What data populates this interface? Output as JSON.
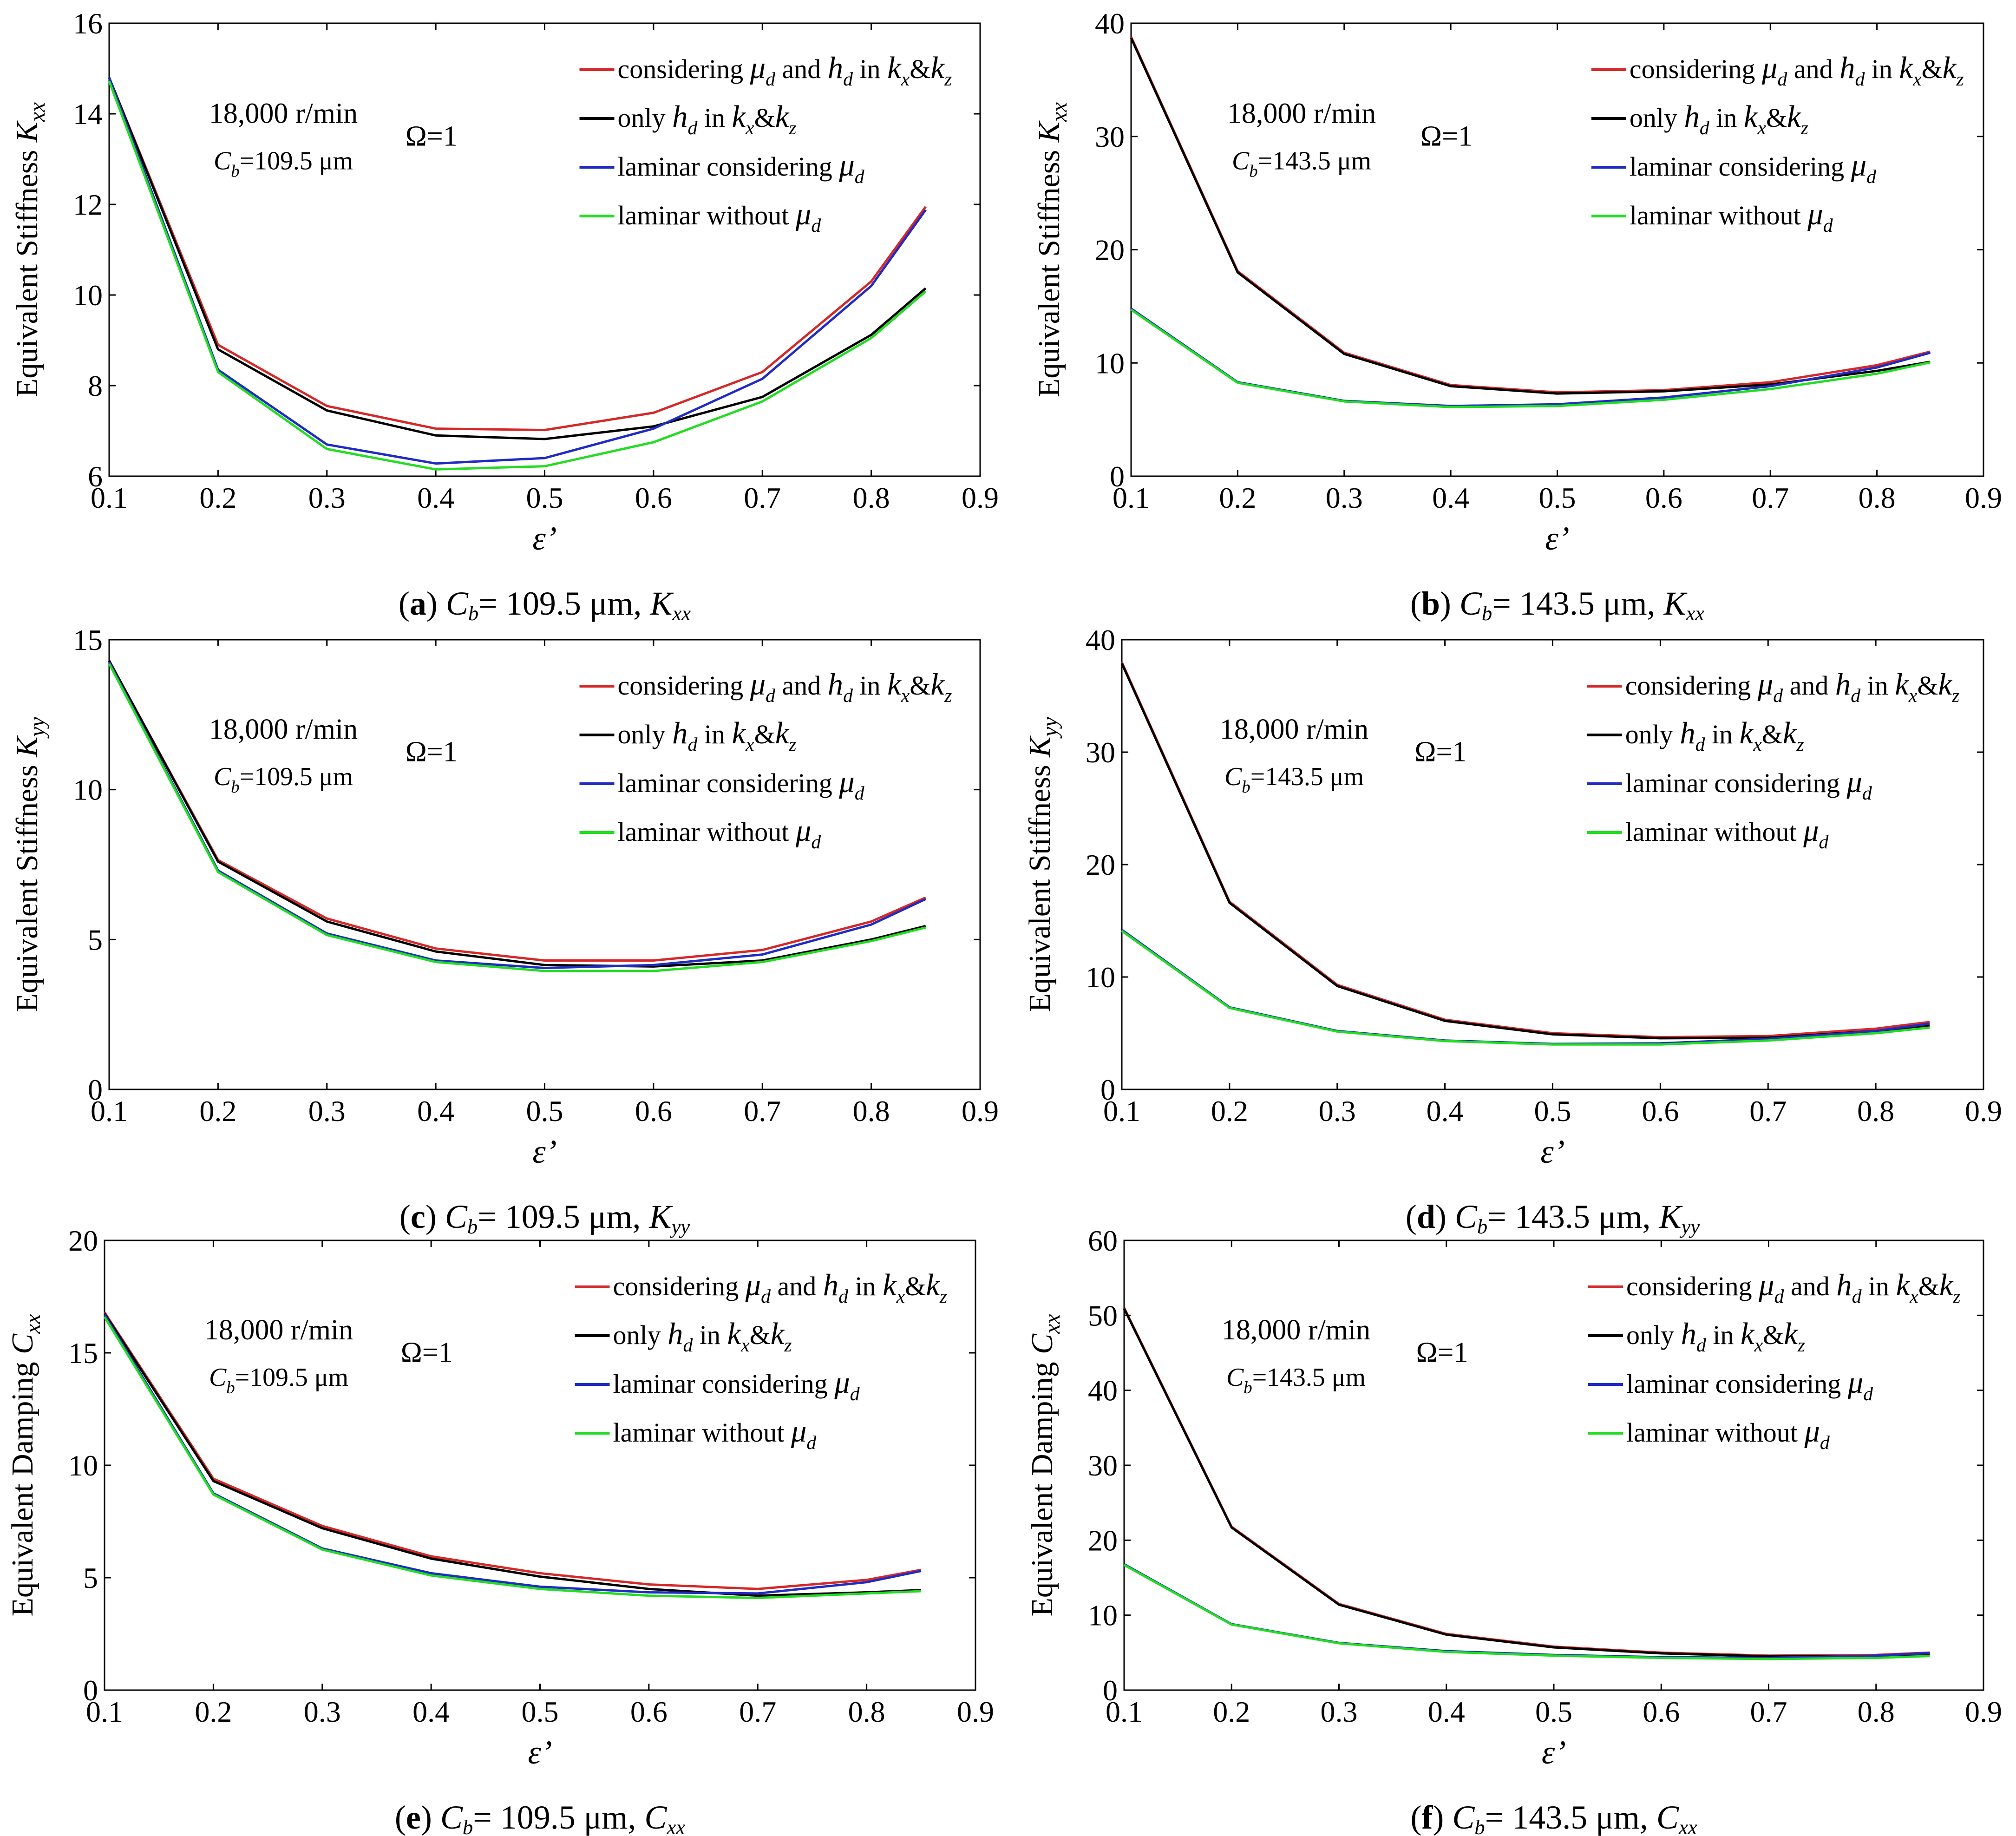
{
  "figure": {
    "subtitle_templates": "(letter) Cb = value, Kxx"
  },
  "legend_labels": [
    {
      "key": "s1",
      "parts": [
        "considering ",
        "μ",
        "d",
        " and ",
        "h",
        "d",
        " in ",
        "k",
        "x",
        "&",
        "k",
        "z"
      ]
    },
    {
      "key": "s2",
      "parts": [
        "only ",
        "h",
        "d",
        " in ",
        "k",
        "x",
        "&",
        "k",
        "z"
      ]
    },
    {
      "key": "s3",
      "parts": [
        "laminar considering ",
        "μ",
        "d"
      ]
    },
    {
      "key": "s4",
      "parts": [
        "laminar without ",
        "μ",
        "d"
      ]
    }
  ],
  "colors": {
    "s1": "#d62828",
    "s2": "#000000",
    "s3": "#1f2bc4",
    "s4": "#22dd22"
  },
  "chart_data": [
    {
      "id": "a",
      "type": "line",
      "subtitle": {
        "letter": "a",
        "cb_value": "= 109.5 μm,",
        "quantity": "K",
        "quantity_sub": "xx"
      },
      "ylabel": {
        "prefix": "Equivalent Stiffness ",
        "symbol": "K",
        "sub": "xx"
      },
      "xlabel": "ε’",
      "annotations": {
        "speed": "18,000 r/min",
        "cb": "C",
        "cb_sub": "b",
        "cb_value": "=109.5 μm",
        "omega": "Ω=1"
      },
      "xlim": [
        0.1,
        0.9
      ],
      "ylim": [
        6,
        16
      ],
      "xticks": [
        "0.1",
        "0.2",
        "0.3",
        "0.4",
        "0.5",
        "0.6",
        "0.7",
        "0.8",
        "0.9"
      ],
      "yticks": [
        "6",
        "8",
        "10",
        "12",
        "14",
        "16"
      ],
      "x": [
        0.1,
        0.2,
        0.3,
        0.4,
        0.5,
        0.6,
        0.7,
        0.8,
        0.85
      ],
      "series": [
        {
          "key": "s1",
          "values": [
            14.8,
            8.9,
            7.55,
            7.05,
            7.02,
            7.4,
            8.3,
            10.3,
            11.95
          ]
        },
        {
          "key": "s2",
          "values": [
            14.8,
            8.8,
            7.45,
            6.9,
            6.82,
            7.1,
            7.75,
            9.12,
            10.15
          ]
        },
        {
          "key": "s3",
          "values": [
            14.8,
            8.35,
            6.7,
            6.28,
            6.4,
            7.05,
            8.15,
            10.2,
            11.88
          ]
        },
        {
          "key": "s4",
          "values": [
            14.72,
            8.3,
            6.6,
            6.15,
            6.22,
            6.75,
            7.65,
            9.05,
            10.08
          ]
        }
      ]
    },
    {
      "id": "b",
      "type": "line",
      "subtitle": {
        "letter": "b",
        "cb_value": "= 143.5 μm,",
        "quantity": "K",
        "quantity_sub": "xx"
      },
      "ylabel": {
        "prefix": "Equivalent Stiffness ",
        "symbol": "K",
        "sub": "xx"
      },
      "xlabel": "ε’",
      "annotations": {
        "speed": "18,000 r/min",
        "cb": "C",
        "cb_sub": "b",
        "cb_value": "=143.5 μm",
        "omega": "Ω=1"
      },
      "xlim": [
        0.1,
        0.9
      ],
      "ylim": [
        0,
        40
      ],
      "xticks": [
        "0.1",
        "0.2",
        "0.3",
        "0.4",
        "0.5",
        "0.6",
        "0.7",
        "0.8",
        "0.9"
      ],
      "yticks": [
        "0",
        "10",
        "20",
        "30",
        "40"
      ],
      "x": [
        0.1,
        0.2,
        0.3,
        0.4,
        0.5,
        0.6,
        0.7,
        0.8,
        0.85
      ],
      "series": [
        {
          "key": "s1",
          "values": [
            38.8,
            18.1,
            10.9,
            8.05,
            7.4,
            7.6,
            8.3,
            9.8,
            11.0
          ]
        },
        {
          "key": "s2",
          "values": [
            38.7,
            18.0,
            10.8,
            7.95,
            7.3,
            7.5,
            8.1,
            9.3,
            10.1
          ]
        },
        {
          "key": "s3",
          "values": [
            14.8,
            8.3,
            6.65,
            6.2,
            6.35,
            6.95,
            7.95,
            9.6,
            10.9
          ]
        },
        {
          "key": "s4",
          "values": [
            14.7,
            8.25,
            6.6,
            6.1,
            6.2,
            6.75,
            7.7,
            9.05,
            10.05
          ]
        }
      ]
    },
    {
      "id": "c",
      "type": "line",
      "subtitle": {
        "letter": "c",
        "cb_value": "= 109.5 μm,",
        "quantity": "K",
        "quantity_sub": "yy"
      },
      "ylabel": {
        "prefix": "Equivalent Stiffness ",
        "symbol": "K",
        "sub": "yy"
      },
      "xlabel": "ε’",
      "annotations": {
        "speed": "18,000 r/min",
        "cb": "C",
        "cb_sub": "b",
        "cb_value": "=109.5 μm",
        "omega": "Ω=1"
      },
      "xlim": [
        0.1,
        0.9
      ],
      "ylim": [
        0,
        15
      ],
      "xticks": [
        "0.1",
        "0.2",
        "0.3",
        "0.4",
        "0.5",
        "0.6",
        "0.7",
        "0.8",
        "0.9"
      ],
      "yticks": [
        "0",
        "5",
        "10",
        "15"
      ],
      "x": [
        0.1,
        0.2,
        0.3,
        0.4,
        0.5,
        0.6,
        0.7,
        0.8,
        0.85
      ],
      "series": [
        {
          "key": "s1",
          "values": [
            14.3,
            7.65,
            5.7,
            4.7,
            4.3,
            4.3,
            4.65,
            5.6,
            6.4
          ]
        },
        {
          "key": "s2",
          "values": [
            14.3,
            7.6,
            5.6,
            4.6,
            4.15,
            4.1,
            4.3,
            5.0,
            5.45
          ]
        },
        {
          "key": "s3",
          "values": [
            14.25,
            7.3,
            5.2,
            4.3,
            4.05,
            4.15,
            4.5,
            5.5,
            6.35
          ]
        },
        {
          "key": "s4",
          "values": [
            14.2,
            7.25,
            5.15,
            4.25,
            3.95,
            3.95,
            4.25,
            4.95,
            5.4
          ]
        }
      ]
    },
    {
      "id": "d",
      "type": "line",
      "subtitle": {
        "letter": "d",
        "cb_value": "= 143.5 μm,",
        "quantity": "K",
        "quantity_sub": "yy"
      },
      "ylabel": {
        "prefix": "Equivalent Stiffness ",
        "symbol": "K",
        "sub": "yy"
      },
      "xlabel": "ε’",
      "annotations": {
        "speed": "18,000 r/min",
        "cb": "C",
        "cb_sub": "b",
        "cb_value": "=143.5 μm",
        "omega": "Ω=1"
      },
      "xlim": [
        0.1,
        0.9
      ],
      "ylim": [
        0,
        40
      ],
      "xticks": [
        "0.1",
        "0.2",
        "0.3",
        "0.4",
        "0.5",
        "0.6",
        "0.7",
        "0.8",
        "0.9"
      ],
      "yticks": [
        "0",
        "10",
        "20",
        "30",
        "40"
      ],
      "x": [
        0.1,
        0.2,
        0.3,
        0.4,
        0.5,
        0.6,
        0.7,
        0.8,
        0.85
      ],
      "series": [
        {
          "key": "s1",
          "values": [
            38.0,
            16.7,
            9.3,
            6.2,
            5.0,
            4.65,
            4.75,
            5.4,
            6.0
          ]
        },
        {
          "key": "s2",
          "values": [
            37.9,
            16.6,
            9.2,
            6.1,
            4.9,
            4.55,
            4.6,
            5.2,
            5.7
          ]
        },
        {
          "key": "s3",
          "values": [
            14.2,
            7.3,
            5.2,
            4.35,
            4.05,
            4.1,
            4.5,
            5.2,
            5.85
          ]
        },
        {
          "key": "s4",
          "values": [
            14.1,
            7.25,
            5.15,
            4.3,
            4.0,
            4.0,
            4.35,
            5.0,
            5.5
          ]
        }
      ]
    },
    {
      "id": "e",
      "type": "line",
      "subtitle": {
        "letter": "e",
        "cb_value": "= 109.5 μm,",
        "quantity": "C",
        "quantity_sub": "xx"
      },
      "ylabel": {
        "prefix": "Equivalent Damping ",
        "symbol": "C",
        "sub": "xx"
      },
      "xlabel": "ε’",
      "annotations": {
        "speed": "18,000 r/min",
        "cb": "C",
        "cb_sub": "b",
        "cb_value": "=109.5 μm",
        "omega": "Ω=1"
      },
      "xlim": [
        0.1,
        0.9
      ],
      "ylim": [
        0,
        20
      ],
      "xticks": [
        "0.1",
        "0.2",
        "0.3",
        "0.4",
        "0.5",
        "0.6",
        "0.7",
        "0.8",
        "0.9"
      ],
      "yticks": [
        "0",
        "5",
        "10",
        "15",
        "20"
      ],
      "x": [
        0.1,
        0.2,
        0.3,
        0.4,
        0.5,
        0.6,
        0.7,
        0.8,
        0.85
      ],
      "series": [
        {
          "key": "s1",
          "values": [
            16.8,
            9.4,
            7.3,
            5.95,
            5.2,
            4.7,
            4.5,
            4.9,
            5.35
          ]
        },
        {
          "key": "s2",
          "values": [
            16.75,
            9.3,
            7.2,
            5.85,
            5.05,
            4.5,
            4.2,
            4.35,
            4.45
          ]
        },
        {
          "key": "s3",
          "values": [
            16.7,
            8.75,
            6.3,
            5.2,
            4.6,
            4.35,
            4.3,
            4.8,
            5.3
          ]
        },
        {
          "key": "s4",
          "values": [
            16.6,
            8.7,
            6.25,
            5.1,
            4.5,
            4.2,
            4.1,
            4.3,
            4.4
          ]
        }
      ]
    },
    {
      "id": "f",
      "type": "line",
      "subtitle": {
        "letter": "f",
        "cb_value": "= 143.5 μm,",
        "quantity": "C",
        "quantity_sub": "xx"
      },
      "ylabel": {
        "prefix": "Equivalent Damping ",
        "symbol": "C",
        "sub": "xx"
      },
      "xlabel": "ε’",
      "annotations": {
        "speed": "18,000 r/min",
        "cb": "C",
        "cb_sub": "b",
        "cb_value": "=143.5 μm",
        "omega": "Ω=1"
      },
      "xlim": [
        0.1,
        0.9
      ],
      "ylim": [
        0,
        60
      ],
      "xticks": [
        "0.1",
        "0.2",
        "0.3",
        "0.4",
        "0.5",
        "0.6",
        "0.7",
        "0.8",
        "0.9"
      ],
      "yticks": [
        "0",
        "10",
        "20",
        "30",
        "40",
        "50",
        "60"
      ],
      "x": [
        0.1,
        0.2,
        0.3,
        0.4,
        0.5,
        0.6,
        0.7,
        0.8,
        0.85
      ],
      "series": [
        {
          "key": "s1",
          "values": [
            51.0,
            21.8,
            11.5,
            7.5,
            5.8,
            5.0,
            4.6,
            4.7,
            5.0
          ]
        },
        {
          "key": "s2",
          "values": [
            50.9,
            21.7,
            11.4,
            7.4,
            5.7,
            4.9,
            4.5,
            4.55,
            4.7
          ]
        },
        {
          "key": "s3",
          "values": [
            16.8,
            8.8,
            6.3,
            5.2,
            4.7,
            4.4,
            4.3,
            4.6,
            4.95
          ]
        },
        {
          "key": "s4",
          "values": [
            16.7,
            8.75,
            6.25,
            5.1,
            4.6,
            4.3,
            4.15,
            4.3,
            4.55
          ]
        }
      ]
    }
  ]
}
